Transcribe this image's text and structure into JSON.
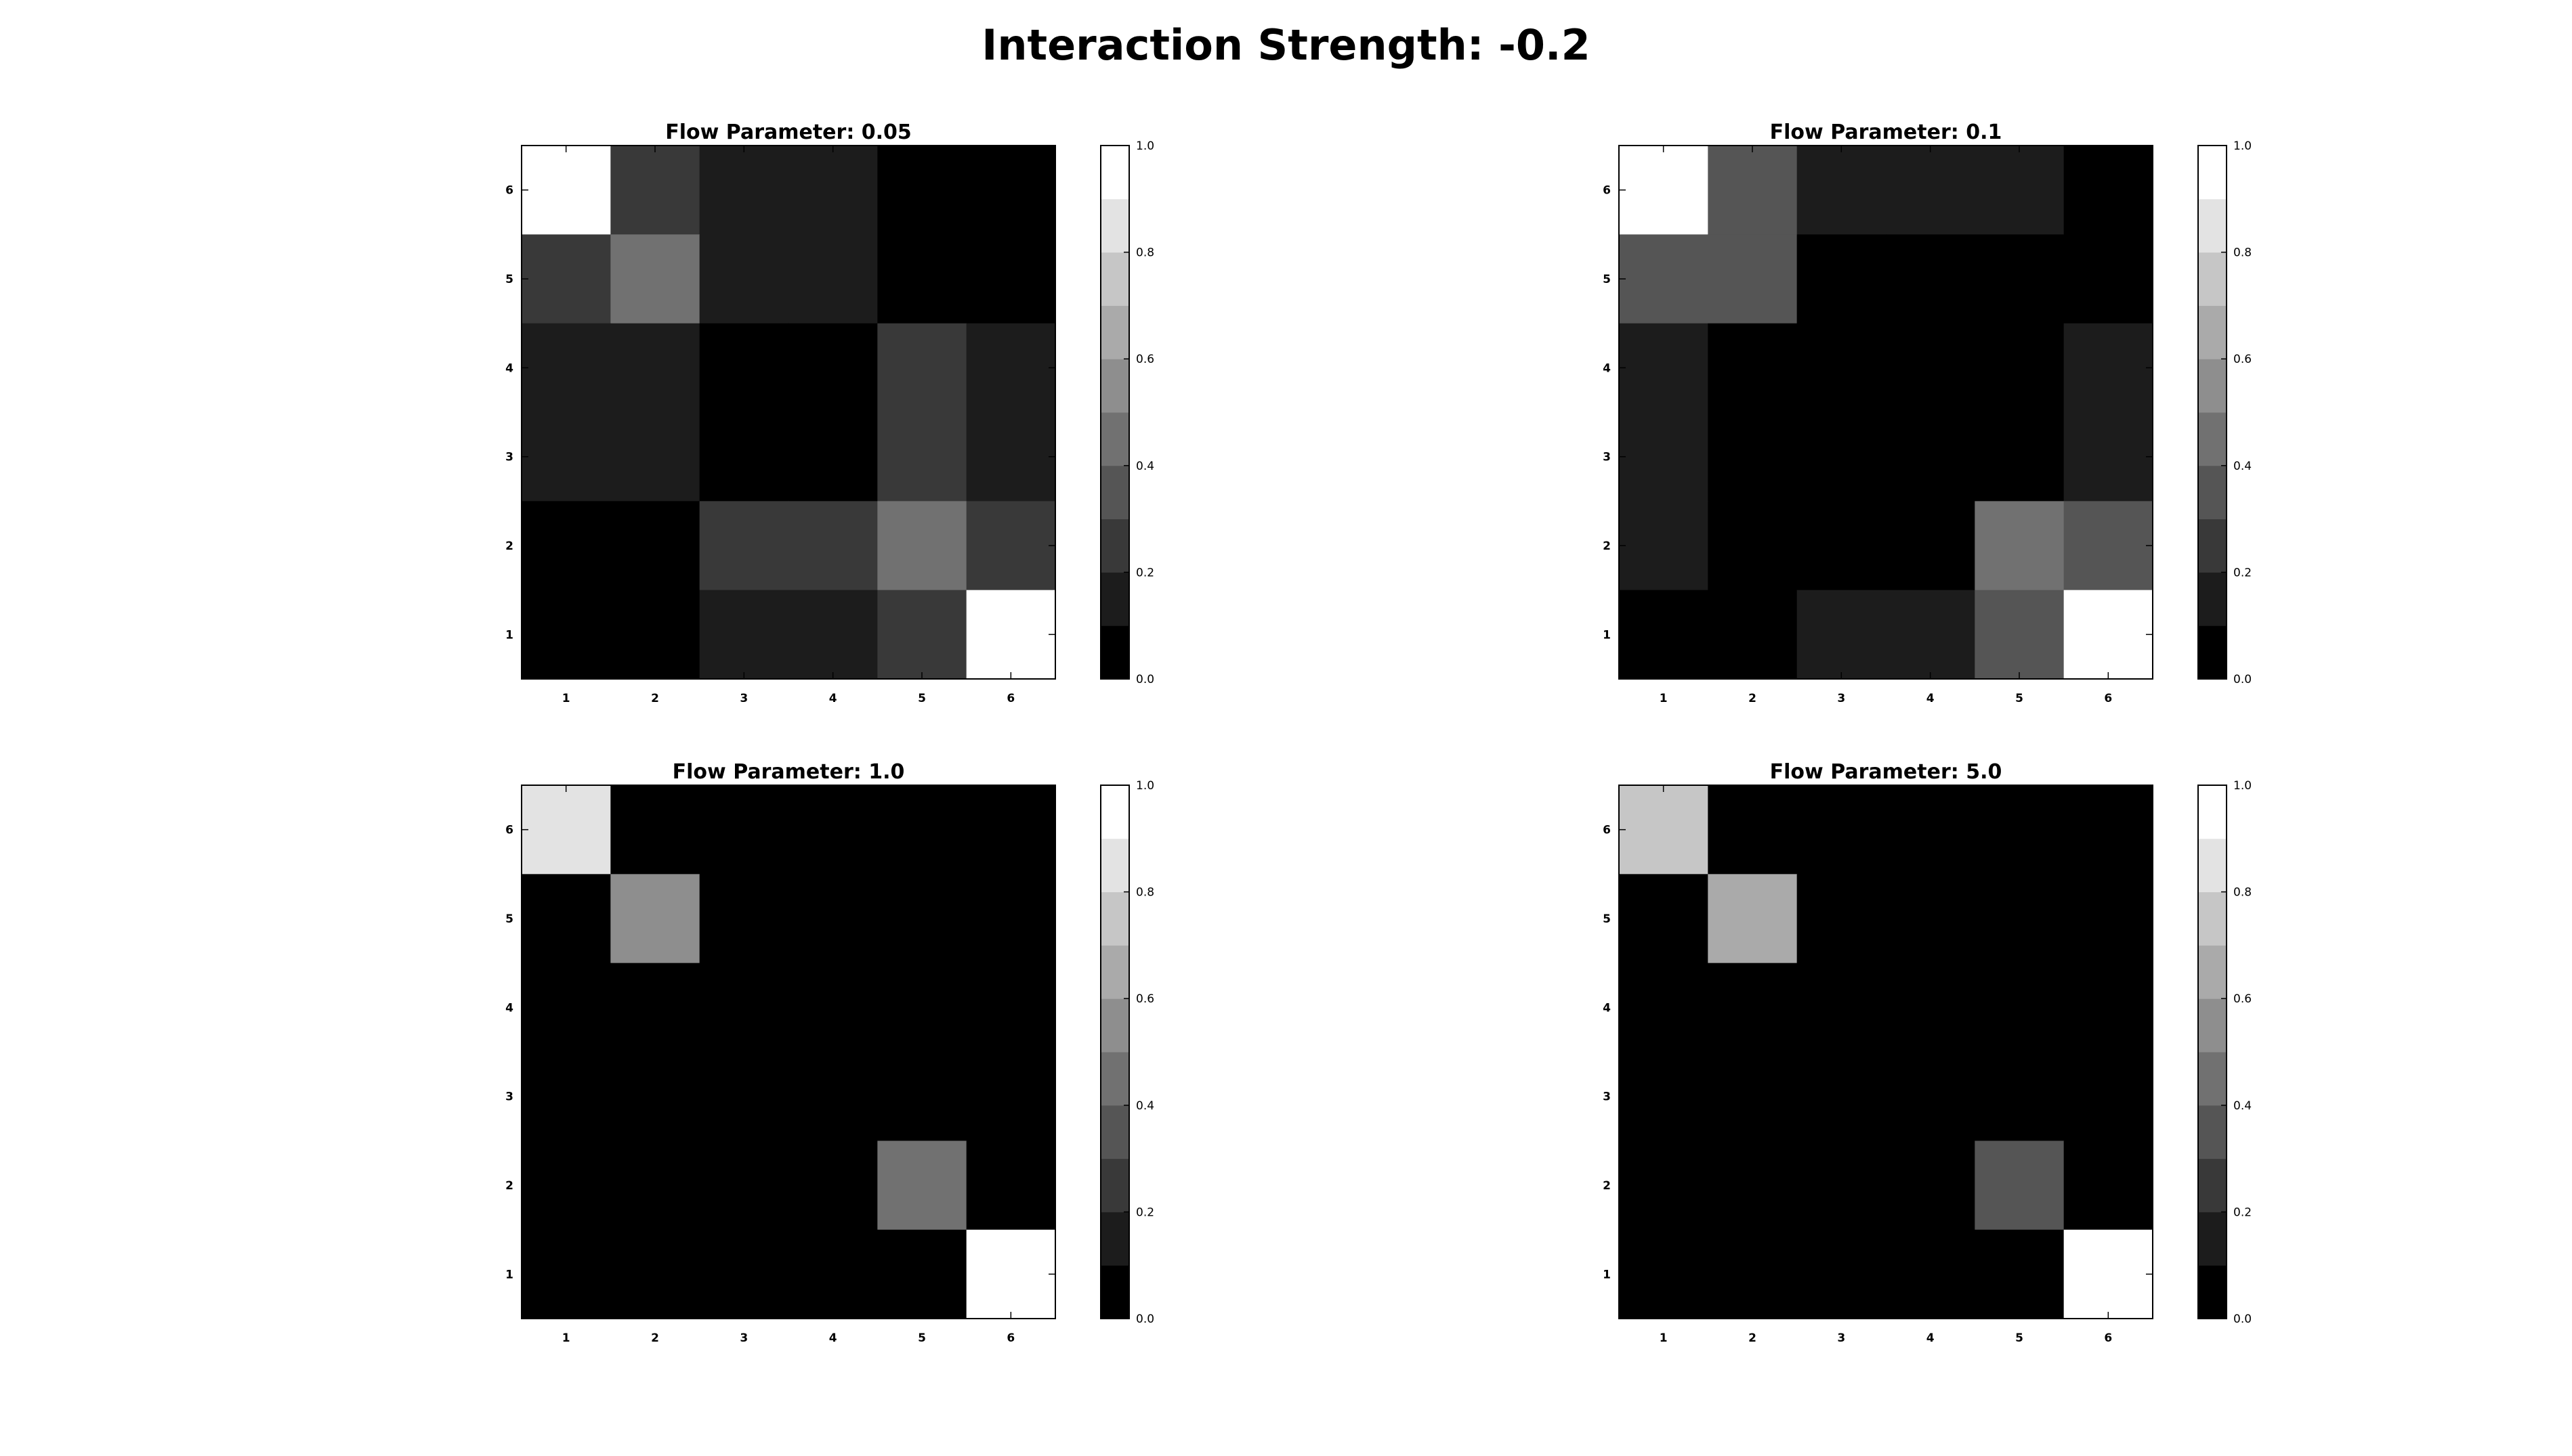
{
  "figure": {
    "title": "Interaction Strength: -0.2"
  },
  "colormap": "gray",
  "colorbar": {
    "levels": 10,
    "range": [
      0.0,
      1.0
    ],
    "ticks": [
      0.0,
      0.2,
      0.4,
      0.6,
      0.8,
      1.0
    ],
    "tick_labels": [
      "0.0",
      "0.2",
      "0.4",
      "0.6",
      "0.8",
      "1.0"
    ]
  },
  "chart_data": [
    {
      "type": "heatmap",
      "title": "Flow Parameter: 0.05",
      "x": [
        "1",
        "2",
        "3",
        "4",
        "5",
        "6"
      ],
      "y": [
        "1",
        "2",
        "3",
        "4",
        "5",
        "6"
      ],
      "vmin": 0.0,
      "vmax": 1.0,
      "grid": false,
      "colorbar": true,
      "colorbar_position": "right",
      "values_top_to_bottom": [
        [
          1.0,
          0.2,
          0.1,
          0.1,
          0.0,
          0.0
        ],
        [
          0.2,
          0.4,
          0.1,
          0.1,
          0.0,
          0.0
        ],
        [
          0.1,
          0.1,
          0.0,
          0.0,
          0.2,
          0.1
        ],
        [
          0.1,
          0.1,
          0.0,
          0.0,
          0.2,
          0.1
        ],
        [
          0.0,
          0.0,
          0.2,
          0.2,
          0.4,
          0.2
        ],
        [
          0.0,
          0.0,
          0.1,
          0.1,
          0.2,
          1.0
        ]
      ]
    },
    {
      "type": "heatmap",
      "title": "Flow Parameter: 0.1",
      "x": [
        "1",
        "2",
        "3",
        "4",
        "5",
        "6"
      ],
      "y": [
        "1",
        "2",
        "3",
        "4",
        "5",
        "6"
      ],
      "vmin": 0.0,
      "vmax": 1.0,
      "grid": false,
      "colorbar": true,
      "colorbar_position": "right",
      "values_top_to_bottom": [
        [
          1.0,
          0.3,
          0.1,
          0.1,
          0.1,
          0.0
        ],
        [
          0.3,
          0.3,
          0.0,
          0.0,
          0.0,
          0.0
        ],
        [
          0.1,
          0.0,
          0.0,
          0.0,
          0.0,
          0.1
        ],
        [
          0.1,
          0.0,
          0.0,
          0.0,
          0.0,
          0.1
        ],
        [
          0.1,
          0.0,
          0.0,
          0.0,
          0.4,
          0.3
        ],
        [
          0.0,
          0.0,
          0.1,
          0.1,
          0.3,
          1.0
        ]
      ]
    },
    {
      "type": "heatmap",
      "title": "Flow Parameter: 1.0",
      "x": [
        "1",
        "2",
        "3",
        "4",
        "5",
        "6"
      ],
      "y": [
        "1",
        "2",
        "3",
        "4",
        "5",
        "6"
      ],
      "vmin": 0.0,
      "vmax": 1.0,
      "grid": false,
      "colorbar": true,
      "colorbar_position": "right",
      "values_top_to_bottom": [
        [
          0.8,
          0.0,
          0.0,
          0.0,
          0.0,
          0.0
        ],
        [
          0.0,
          0.5,
          0.0,
          0.0,
          0.0,
          0.0
        ],
        [
          0.0,
          0.0,
          0.0,
          0.0,
          0.0,
          0.0
        ],
        [
          0.0,
          0.0,
          0.0,
          0.0,
          0.0,
          0.0
        ],
        [
          0.0,
          0.0,
          0.0,
          0.0,
          0.4,
          0.0
        ],
        [
          0.0,
          0.0,
          0.0,
          0.0,
          0.0,
          1.0
        ]
      ]
    },
    {
      "type": "heatmap",
      "title": "Flow Parameter: 5.0",
      "x": [
        "1",
        "2",
        "3",
        "4",
        "5",
        "6"
      ],
      "y": [
        "1",
        "2",
        "3",
        "4",
        "5",
        "6"
      ],
      "vmin": 0.0,
      "vmax": 1.0,
      "grid": false,
      "colorbar": true,
      "colorbar_position": "right",
      "values_top_to_bottom": [
        [
          0.7,
          0.0,
          0.0,
          0.0,
          0.0,
          0.0
        ],
        [
          0.0,
          0.6,
          0.0,
          0.0,
          0.0,
          0.0
        ],
        [
          0.0,
          0.0,
          0.0,
          0.0,
          0.0,
          0.0
        ],
        [
          0.0,
          0.0,
          0.0,
          0.0,
          0.0,
          0.0
        ],
        [
          0.0,
          0.0,
          0.0,
          0.0,
          0.3,
          0.0
        ],
        [
          0.0,
          0.0,
          0.0,
          0.0,
          0.0,
          1.0
        ]
      ]
    }
  ]
}
